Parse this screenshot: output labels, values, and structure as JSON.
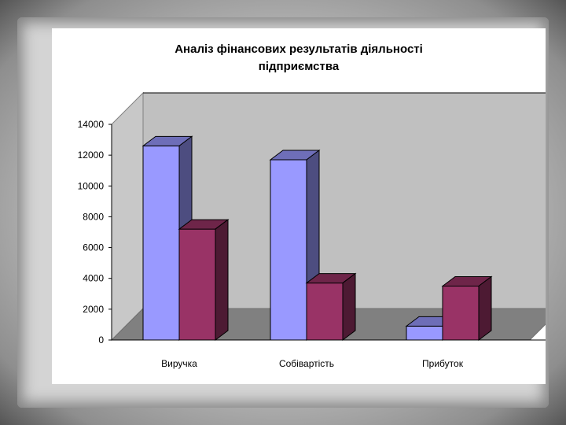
{
  "chart_data": {
    "type": "bar",
    "title_line1": "Аналіз фінансових результатів діяльності",
    "title_line2": "підприємства",
    "categories": [
      "Виручка",
      "Собівартість",
      "Прибуток"
    ],
    "series": [
      {
        "values": [
          12600,
          11700,
          900
        ],
        "color": "#9999ff"
      },
      {
        "values": [
          7200,
          3700,
          3500
        ],
        "color": "#993366"
      }
    ],
    "ylim": [
      0,
      14000
    ],
    "yticks": [
      "0",
      "2000",
      "4000",
      "6000",
      "8000",
      "10000",
      "12000",
      "14000"
    ],
    "grid": false,
    "legend": "none",
    "style": "3d-clustered"
  }
}
